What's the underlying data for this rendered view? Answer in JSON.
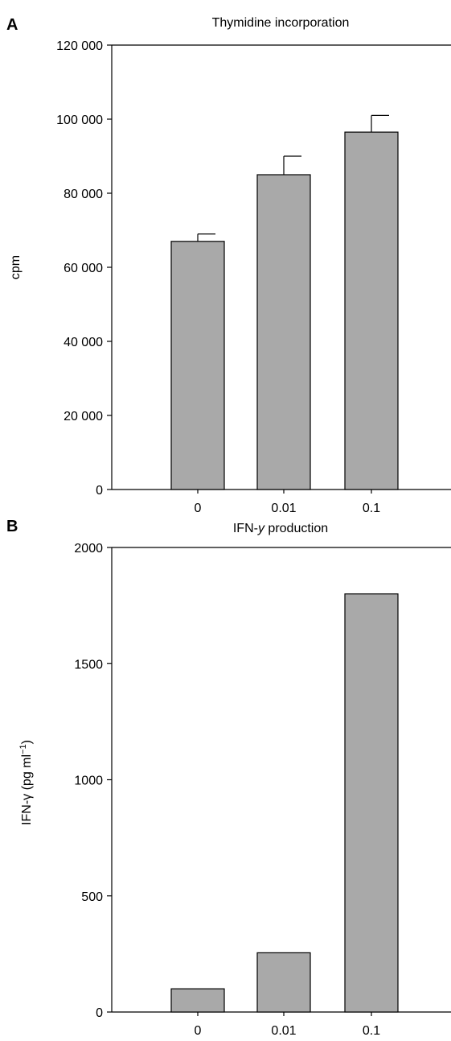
{
  "chart_data": [
    {
      "panel": "A",
      "type": "bar",
      "title": "Thymidine incorporation",
      "xlabel": "",
      "ylabel": "cpm",
      "categories": [
        "0",
        "0.01",
        "0.1"
      ],
      "values": [
        67000,
        85000,
        96500
      ],
      "error_upper": [
        69000,
        90000,
        101000
      ],
      "ylim": [
        0,
        120000
      ],
      "yticks": [
        0,
        20000,
        40000,
        60000,
        80000,
        100000,
        120000
      ],
      "ytick_labels": [
        "0",
        "20 000",
        "40 000",
        "60 000",
        "80 000",
        "100 000",
        "120 000"
      ],
      "grid": false,
      "bar_color": "#a9a9a9"
    },
    {
      "panel": "B",
      "type": "bar",
      "title": "IFN-y production",
      "xlabel": "",
      "ylabel": "IFN-γ (pg ml⁻¹)",
      "categories": [
        "0",
        "0.01",
        "0.1"
      ],
      "values": [
        100,
        255,
        1800
      ],
      "ylim": [
        0,
        2000
      ],
      "yticks": [
        0,
        500,
        1000,
        1500,
        2000
      ],
      "ytick_labels": [
        "0",
        "500",
        "1000",
        "1500",
        "2000"
      ],
      "grid": false,
      "bar_color": "#a9a9a9"
    }
  ]
}
